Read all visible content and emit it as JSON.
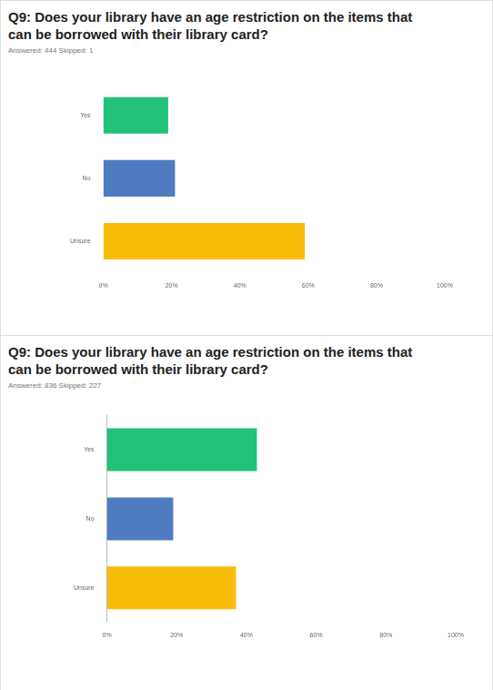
{
  "chart_data": [
    {
      "type": "bar",
      "orientation": "horizontal",
      "title": "Q9: Does your library have an age restriction on the items that can be borrowed with their library card?",
      "subtitle": "Answered: 444   Skipped: 1",
      "categories": [
        "Yes",
        "No",
        "Unsure"
      ],
      "values": [
        19,
        21,
        59
      ],
      "colors": [
        "#21c17a",
        "#4f7cc1",
        "#f8bd0a"
      ],
      "xlim": [
        0,
        100
      ],
      "xticks": [
        {
          "value": 0,
          "label": "0%"
        },
        {
          "value": 20,
          "label": "20%"
        },
        {
          "value": 40,
          "label": "40%"
        },
        {
          "value": 60,
          "label": "60%"
        },
        {
          "value": 80,
          "label": "80%"
        },
        {
          "value": 100,
          "label": "100%"
        }
      ],
      "grid": false
    },
    {
      "type": "bar",
      "orientation": "horizontal",
      "title": "Q9: Does your library have an age restriction on the items that can be borrowed with their library card?",
      "subtitle": "Answered: 836   Skipped: 227",
      "categories": [
        "Yes",
        "No",
        "Unsure"
      ],
      "values": [
        43,
        19,
        37
      ],
      "colors": [
        "#21c17a",
        "#4f7cc1",
        "#f8bd0a"
      ],
      "xlim": [
        0,
        100
      ],
      "xticks": [
        {
          "value": 0,
          "label": "0%"
        },
        {
          "value": 20,
          "label": "20%"
        },
        {
          "value": 40,
          "label": "40%"
        },
        {
          "value": 60,
          "label": "60%"
        },
        {
          "value": 80,
          "label": "80%"
        },
        {
          "value": 100,
          "label": "100%"
        }
      ],
      "grid": false
    }
  ]
}
